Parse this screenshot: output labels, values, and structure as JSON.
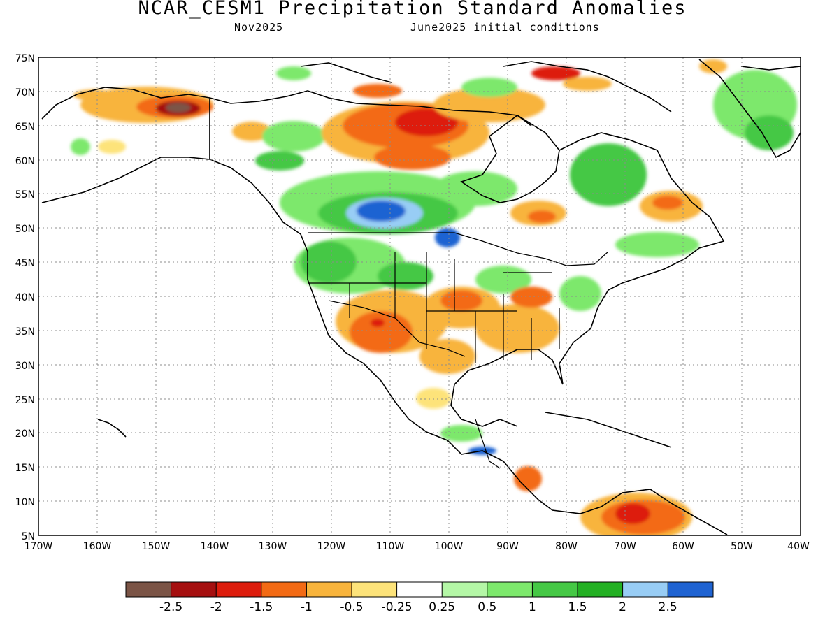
{
  "title": "NCAR_CESM1 Precipitation Standard Anomalies",
  "valid_month": "Nov2025",
  "init_label": "June2025 initial conditions",
  "map": {
    "lon_range": [
      -170,
      -40
    ],
    "lat_range": [
      5,
      75
    ],
    "lat_ticks": [
      "75N",
      "70N",
      "65N",
      "60N",
      "55N",
      "50N",
      "45N",
      "40N",
      "35N",
      "30N",
      "25N",
      "20N",
      "15N",
      "10N",
      "5N"
    ],
    "lon_ticks": [
      "170W",
      "160W",
      "150W",
      "140W",
      "130W",
      "120W",
      "110W",
      "100W",
      "90W",
      "80W",
      "70W",
      "60W",
      "50W",
      "40W"
    ]
  },
  "colorbar": {
    "colors": [
      "#7b5446",
      "#a50f0f",
      "#dd1c0c",
      "#f36a14",
      "#f8b43c",
      "#fde37a",
      "#ffffff",
      "#b4f7a6",
      "#7de86c",
      "#45c845",
      "#23b023",
      "#98cdf5",
      "#1f63d2"
    ],
    "labels": [
      "-2.5",
      "-2",
      "-1.5",
      "-1",
      "-0.5",
      "-0.25",
      "0.25",
      "0.5",
      "1",
      "1.5",
      "2",
      "2.5"
    ]
  }
}
